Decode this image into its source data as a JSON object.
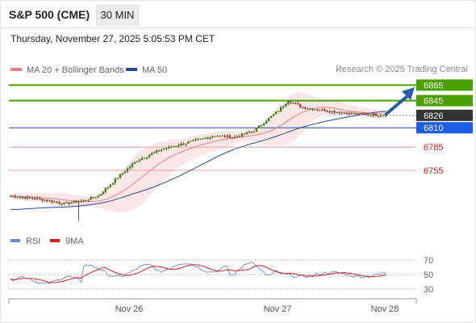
{
  "header": {
    "title": "S&P 500 (CME)",
    "timeframe": "30 MIN"
  },
  "datetime": "Thursday, November 27, 2025 5:05:53 PM CET",
  "legend": [
    {
      "label": "MA 20 + Bollinger Bands",
      "color": "#f08080"
    },
    {
      "label": "MA 50",
      "color": "#1f4e96"
    }
  ],
  "copyright": "Research © 2025 Trading Central",
  "colors": {
    "level_green": "#4aa000",
    "level_red": "#f0a0a0",
    "level_blue": "#1f4e96",
    "tag_last": "#333333",
    "tag_blue": "#1a5ee6",
    "arrow": "#2a5ca8",
    "candle_up": "#2e8b00",
    "candle_down": "#d22020",
    "rsi": "#6b88d6",
    "rsi_ma": "#d22020"
  },
  "chart_data": {
    "type": "candlestick",
    "y_range": [
      6680,
      6880
    ],
    "levels": [
      {
        "value": 6865,
        "label": "6865",
        "style": "resistance"
      },
      {
        "value": 6845,
        "label": "6845",
        "style": "resistance"
      },
      {
        "value": 6810,
        "label": "6810",
        "style": "pivot"
      },
      {
        "value": 6785,
        "label": "6785",
        "style": "support"
      },
      {
        "value": 6755,
        "label": "6755",
        "style": "support"
      }
    ],
    "last_price": {
      "value": 6826,
      "label": "6826"
    },
    "x_labels": [
      "Nov 26",
      "Nov 27",
      "Nov 28"
    ],
    "rsi": {
      "legend": [
        "RSI",
        "9MA"
      ],
      "y_ticks": [
        "70",
        "50",
        "30"
      ]
    }
  }
}
